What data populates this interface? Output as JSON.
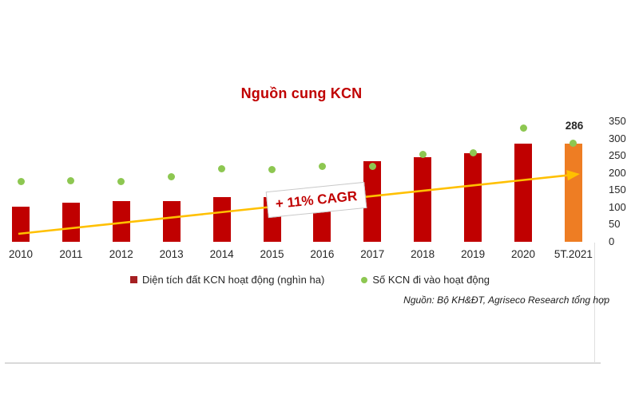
{
  "title": "Nguồn cung KCN",
  "source_note": "Nguồn: Bộ KH&ĐT, Agriseco Research tổng hợp",
  "annotations": {
    "cagr_box": "+ 11% CAGR",
    "last_value_label": "286"
  },
  "legend": {
    "items": [
      {
        "label": "Diện tích đất KCN hoạt động (nghìn ha)",
        "marker": "square",
        "color": "#A52022"
      },
      {
        "label": "Số KCN đi vào hoạt động",
        "marker": "circle",
        "color": "#8DC751"
      }
    ]
  },
  "colors": {
    "bar": "#C00000",
    "bar_last": "#EE7D23",
    "dot": "#8DC751",
    "trend_arrow": "#FFC000",
    "title": "#C00000",
    "axis_line": "#D9D9D9",
    "text": "#262626"
  },
  "chart_data": {
    "type": "bar",
    "subtype": "combo: bars + scatter dots + trend arrow annotation",
    "title": "Nguồn cung KCN",
    "categories": [
      "2010",
      "2011",
      "2012",
      "2013",
      "2014",
      "2015",
      "2016",
      "2017",
      "2018",
      "2019",
      "2020",
      "5T.2021"
    ],
    "series": [
      {
        "name": "Diện tích đất KCN hoạt động (nghìn ha)",
        "type": "bar",
        "color": "#C00000",
        "last_point_color": "#EE7D23",
        "values": [
          102,
          114,
          118,
          118,
          130,
          130,
          140,
          234,
          245,
          257,
          285,
          286
        ],
        "note": "values estimated against right axis; 2016 bar top hidden behind CAGR label box"
      },
      {
        "name": "Số KCN đi vào hoạt động",
        "type": "scatter",
        "color": "#8DC751",
        "values": [
          174,
          178,
          176,
          190,
          212,
          211,
          218,
          220,
          254,
          258,
          330,
          286
        ]
      }
    ],
    "xlabel": "",
    "ylabel": "",
    "y_axis": {
      "side": "right",
      "min": 0,
      "max": 350,
      "step": 50,
      "tick_labels": [
        "0",
        "50",
        "100",
        "150",
        "200",
        "250",
        "300",
        "350"
      ]
    },
    "grid": false,
    "legend_position": "bottom",
    "trend_annotation": {
      "label": "+ 11% CAGR",
      "from_category": "2010",
      "to_category": "5T.2021"
    },
    "data_labels": [
      {
        "category": "5T.2021",
        "text": "286"
      }
    ]
  }
}
